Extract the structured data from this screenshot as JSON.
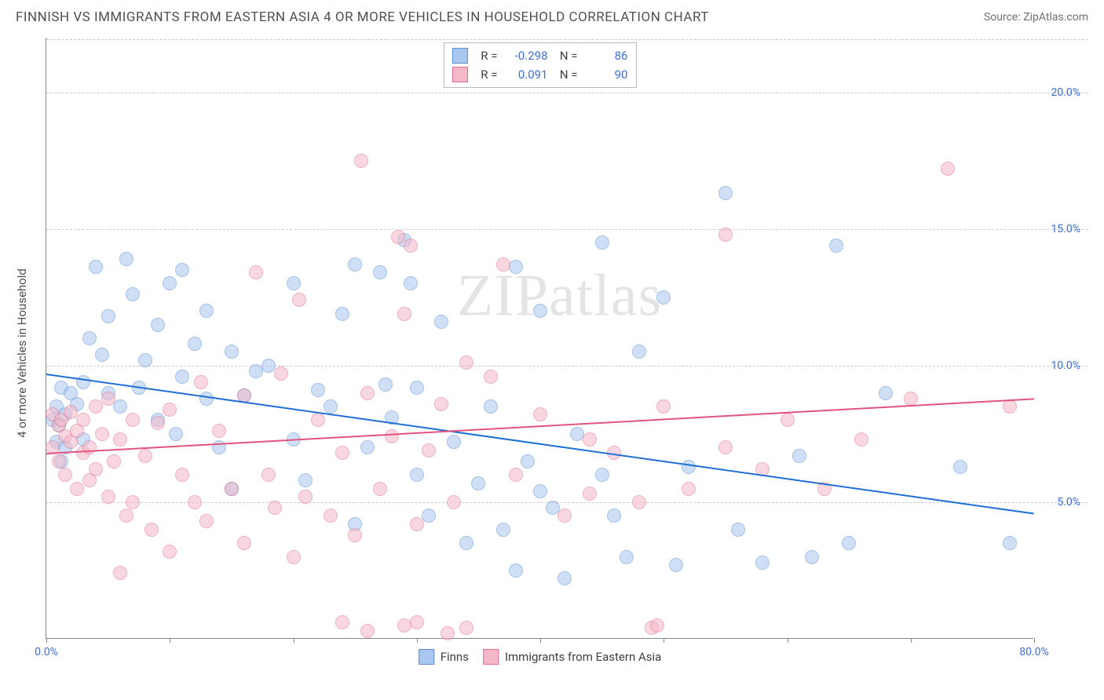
{
  "title": "FINNISH VS IMMIGRANTS FROM EASTERN ASIA 4 OR MORE VEHICLES IN HOUSEHOLD CORRELATION CHART",
  "source": "Source: ZipAtlas.com",
  "y_axis_label": "4 or more Vehicles in Household",
  "watermark": "ZIPatlas",
  "chart": {
    "type": "scatter",
    "background_color": "#ffffff",
    "grid_color": "#cccccc",
    "axis_color": "#888888",
    "tick_label_color": "#3b6fd8",
    "xlim": [
      0,
      80
    ],
    "ylim": [
      0,
      22
    ],
    "y_ticks": [
      5,
      10,
      15,
      20
    ],
    "y_tick_labels": [
      "5.0%",
      "10.0%",
      "15.0%",
      "20.0%"
    ],
    "x_ticks": [
      0,
      10,
      20,
      30,
      40,
      50,
      60,
      70,
      80
    ],
    "x_tick_labels": {
      "0": "0.0%",
      "80": "80.0%"
    },
    "marker_radius": 9,
    "marker_opacity": 0.55,
    "line_width": 2
  },
  "series": [
    {
      "name": "Finns",
      "color_fill": "#a9c7ef",
      "color_stroke": "#5b8fd6",
      "line_color": "#1f6fd8",
      "r_value": "-0.298",
      "n_value": "86",
      "trend": {
        "x1": 0,
        "y1": 9.7,
        "x2": 80,
        "y2": 4.6
      },
      "points": [
        [
          0.5,
          8.0
        ],
        [
          0.8,
          7.2
        ],
        [
          0.8,
          8.5
        ],
        [
          1.0,
          7.8
        ],
        [
          1.2,
          6.5
        ],
        [
          1.2,
          9.2
        ],
        [
          1.5,
          8.2
        ],
        [
          1.5,
          7.0
        ],
        [
          2.0,
          9.0
        ],
        [
          2.5,
          8.6
        ],
        [
          3.0,
          9.4
        ],
        [
          3.0,
          7.3
        ],
        [
          3.5,
          11.0
        ],
        [
          4.0,
          13.6
        ],
        [
          4.5,
          10.4
        ],
        [
          5.0,
          9.0
        ],
        [
          5.0,
          11.8
        ],
        [
          6.0,
          8.5
        ],
        [
          6.5,
          13.9
        ],
        [
          7.0,
          12.6
        ],
        [
          7.5,
          9.2
        ],
        [
          8.0,
          10.2
        ],
        [
          9.0,
          8.0
        ],
        [
          9.0,
          11.5
        ],
        [
          10.0,
          13.0
        ],
        [
          10.5,
          7.5
        ],
        [
          11.0,
          9.6
        ],
        [
          11.0,
          13.5
        ],
        [
          12.0,
          10.8
        ],
        [
          13.0,
          8.8
        ],
        [
          13.0,
          12.0
        ],
        [
          14.0,
          7.0
        ],
        [
          15.0,
          10.5
        ],
        [
          15.0,
          5.5
        ],
        [
          16.0,
          8.9
        ],
        [
          17.0,
          9.8
        ],
        [
          18.0,
          10.0
        ],
        [
          20.0,
          7.3
        ],
        [
          20.0,
          13.0
        ],
        [
          21.0,
          5.8
        ],
        [
          22.0,
          9.1
        ],
        [
          23.0,
          8.5
        ],
        [
          24.0,
          11.9
        ],
        [
          25.0,
          13.7
        ],
        [
          25.0,
          4.2
        ],
        [
          26.0,
          7.0
        ],
        [
          27.0,
          13.4
        ],
        [
          27.5,
          9.3
        ],
        [
          28.0,
          8.1
        ],
        [
          29.0,
          14.6
        ],
        [
          29.5,
          13.0
        ],
        [
          30.0,
          6.0
        ],
        [
          30.0,
          9.2
        ],
        [
          31.0,
          4.5
        ],
        [
          32.0,
          11.6
        ],
        [
          33.0,
          7.2
        ],
        [
          34.0,
          3.5
        ],
        [
          35.0,
          5.7
        ],
        [
          36.0,
          8.5
        ],
        [
          37.0,
          4.0
        ],
        [
          38.0,
          2.5
        ],
        [
          38.0,
          13.6
        ],
        [
          39.0,
          6.5
        ],
        [
          40.0,
          5.4
        ],
        [
          40.0,
          12.0
        ],
        [
          41.0,
          4.8
        ],
        [
          42.0,
          2.2
        ],
        [
          43.0,
          7.5
        ],
        [
          45.0,
          6.0
        ],
        [
          45.0,
          14.5
        ],
        [
          46.0,
          4.5
        ],
        [
          47.0,
          3.0
        ],
        [
          48.0,
          10.5
        ],
        [
          50.0,
          12.5
        ],
        [
          51.0,
          2.7
        ],
        [
          52.0,
          6.3
        ],
        [
          55.0,
          16.3
        ],
        [
          56.0,
          4.0
        ],
        [
          58.0,
          2.8
        ],
        [
          61.0,
          6.7
        ],
        [
          62.0,
          3.0
        ],
        [
          64.0,
          14.4
        ],
        [
          65.0,
          3.5
        ],
        [
          68.0,
          9.0
        ],
        [
          74.0,
          6.3
        ],
        [
          78.0,
          3.5
        ]
      ]
    },
    {
      "name": "Immigrants from Eastern Asia",
      "color_fill": "#f5b8c8",
      "color_stroke": "#e1708f",
      "line_color": "#e1557d",
      "r_value": "0.091",
      "n_value": "90",
      "trend": {
        "x1": 0,
        "y1": 6.8,
        "x2": 80,
        "y2": 8.8
      },
      "points": [
        [
          0.5,
          7.0
        ],
        [
          0.5,
          8.2
        ],
        [
          1.0,
          6.5
        ],
        [
          1.0,
          7.8
        ],
        [
          1.2,
          8.0
        ],
        [
          1.5,
          6.0
        ],
        [
          1.5,
          7.4
        ],
        [
          2.0,
          7.2
        ],
        [
          2.0,
          8.3
        ],
        [
          2.5,
          5.5
        ],
        [
          2.5,
          7.6
        ],
        [
          3.0,
          6.8
        ],
        [
          3.0,
          8.0
        ],
        [
          3.5,
          5.8
        ],
        [
          3.5,
          7.0
        ],
        [
          4.0,
          6.2
        ],
        [
          4.0,
          8.5
        ],
        [
          4.5,
          7.5
        ],
        [
          5.0,
          5.2
        ],
        [
          5.0,
          8.8
        ],
        [
          5.5,
          6.5
        ],
        [
          6.0,
          2.4
        ],
        [
          6.0,
          7.3
        ],
        [
          6.5,
          4.5
        ],
        [
          7.0,
          8.0
        ],
        [
          7.0,
          5.0
        ],
        [
          8.0,
          6.7
        ],
        [
          8.5,
          4.0
        ],
        [
          9.0,
          7.9
        ],
        [
          10.0,
          3.2
        ],
        [
          10.0,
          8.4
        ],
        [
          11.0,
          6.0
        ],
        [
          12.0,
          5.0
        ],
        [
          12.5,
          9.4
        ],
        [
          13.0,
          4.3
        ],
        [
          14.0,
          7.6
        ],
        [
          15.0,
          5.5
        ],
        [
          16.0,
          3.5
        ],
        [
          16.0,
          8.9
        ],
        [
          17.0,
          13.4
        ],
        [
          18.0,
          6.0
        ],
        [
          18.5,
          4.8
        ],
        [
          19.0,
          9.7
        ],
        [
          20.0,
          3.0
        ],
        [
          20.5,
          12.4
        ],
        [
          21.0,
          5.2
        ],
        [
          22.0,
          8.0
        ],
        [
          23.0,
          4.5
        ],
        [
          24.0,
          6.8
        ],
        [
          24.0,
          0.6
        ],
        [
          25.0,
          3.8
        ],
        [
          25.5,
          17.5
        ],
        [
          26.0,
          9.0
        ],
        [
          26.0,
          0.3
        ],
        [
          27.0,
          5.5
        ],
        [
          28.0,
          7.4
        ],
        [
          28.5,
          14.7
        ],
        [
          29.0,
          11.9
        ],
        [
          29.0,
          0.5
        ],
        [
          29.5,
          14.4
        ],
        [
          30.0,
          4.2
        ],
        [
          30.0,
          0.6
        ],
        [
          31.0,
          6.9
        ],
        [
          32.0,
          8.6
        ],
        [
          32.5,
          0.2
        ],
        [
          33.0,
          5.0
        ],
        [
          34.0,
          10.1
        ],
        [
          34.0,
          0.4
        ],
        [
          36.0,
          9.6
        ],
        [
          37.0,
          13.7
        ],
        [
          38.0,
          6.0
        ],
        [
          40.0,
          8.2
        ],
        [
          42.0,
          4.5
        ],
        [
          44.0,
          7.3
        ],
        [
          44.0,
          5.3
        ],
        [
          46.0,
          6.8
        ],
        [
          48.0,
          5.0
        ],
        [
          49.0,
          0.4
        ],
        [
          49.5,
          0.5
        ],
        [
          50.0,
          8.5
        ],
        [
          52.0,
          5.5
        ],
        [
          55.0,
          7.0
        ],
        [
          55.0,
          14.8
        ],
        [
          58.0,
          6.2
        ],
        [
          60.0,
          8.0
        ],
        [
          63.0,
          5.5
        ],
        [
          66.0,
          7.3
        ],
        [
          70.0,
          8.8
        ],
        [
          73.0,
          17.2
        ],
        [
          78.0,
          8.5
        ]
      ]
    }
  ],
  "stats_box_labels": {
    "r": "R =",
    "n": "N ="
  },
  "legend": {
    "items": [
      {
        "swatch_fill": "#a9c7ef",
        "swatch_stroke": "#5b8fd6",
        "label": "Finns"
      },
      {
        "swatch_fill": "#f5b8c8",
        "swatch_stroke": "#e1708f",
        "label": "Immigrants from Eastern Asia"
      }
    ]
  }
}
